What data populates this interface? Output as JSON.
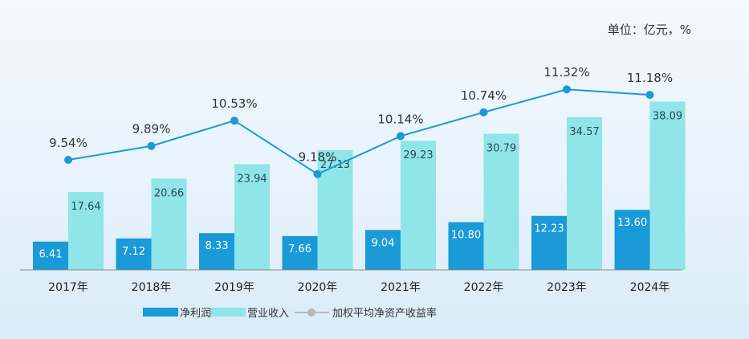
{
  "unit_label": "单位：亿元，%",
  "chart_data": {
    "type": "bar",
    "categories": [
      "2017年",
      "2018年",
      "2019年",
      "2020年",
      "2021年",
      "2022年",
      "2023年",
      "2024年"
    ],
    "series": [
      {
        "name": "净利润",
        "type": "bar",
        "values": [
          6.41,
          7.12,
          8.33,
          7.66,
          9.04,
          10.8,
          12.23,
          13.6
        ],
        "labels": [
          "6.41",
          "7.12",
          "8.33",
          "7.66",
          "9.04",
          "10.80",
          "12.23",
          "13.60"
        ],
        "color": "#1a9ad7"
      },
      {
        "name": "营业收入",
        "type": "bar",
        "values": [
          17.64,
          20.66,
          23.94,
          27.13,
          29.23,
          30.79,
          34.57,
          38.09
        ],
        "labels": [
          "17.64",
          "20.66",
          "23.94",
          "27.13",
          "29.23",
          "30.79",
          "34.57",
          "38.09"
        ],
        "color": "#8fe5e8"
      },
      {
        "name": "加权平均净资产收益率",
        "type": "line",
        "values": [
          9.54,
          9.89,
          10.53,
          9.18,
          10.14,
          10.74,
          11.32,
          11.18
        ],
        "labels": [
          "9.54%",
          "9.89%",
          "10.53%",
          "9.18%",
          "10.14%",
          "10.74%",
          "11.32%",
          "11.18%"
        ],
        "color": "#1a9ad7",
        "legend_color": "#b8b8b8"
      }
    ],
    "legend_position": "bottom",
    "grid": false
  }
}
